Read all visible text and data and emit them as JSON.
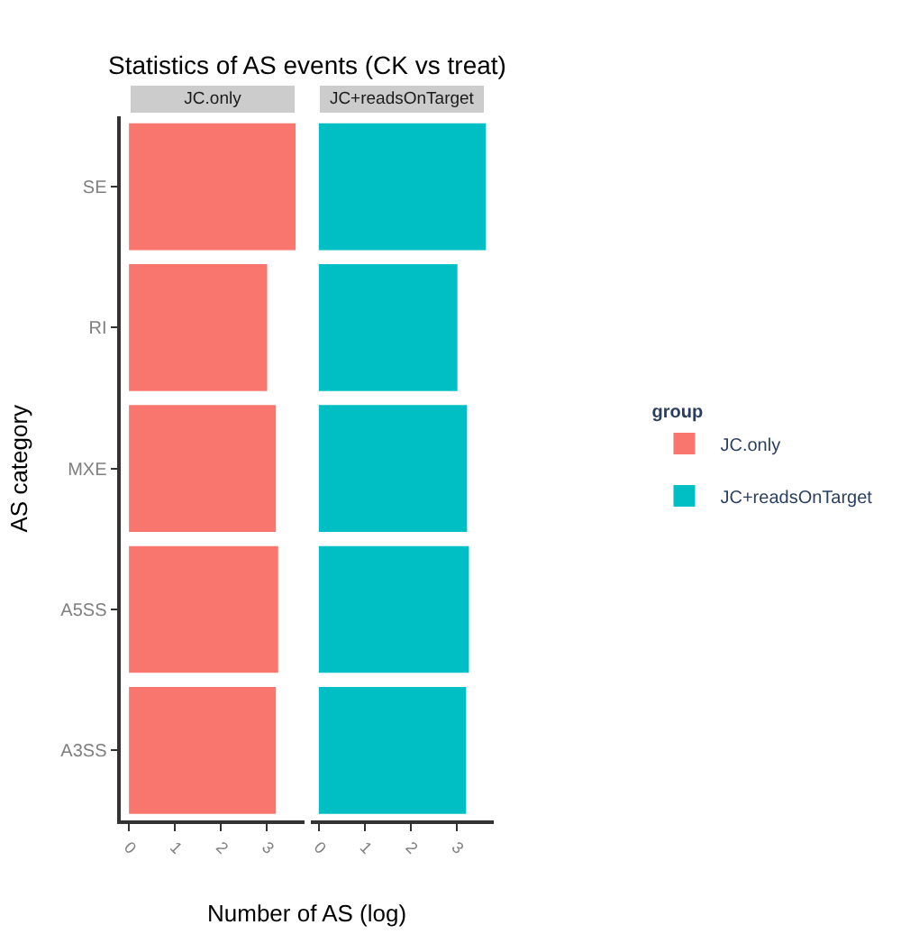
{
  "chart_data": [
    {
      "type": "bar",
      "orientation": "horizontal",
      "title": "Statistics of AS events (CK vs treat)",
      "subtitle": "JC.only",
      "xlabel": "Number of AS (log)",
      "ylabel": "AS category",
      "legend_title": "group",
      "legend": "right",
      "categories": [
        "SE",
        "RI",
        "MXE",
        "A5SS",
        "A3SS"
      ],
      "series": [
        {
          "name": "JC.only",
          "color": "#f8766d",
          "values": [
            3.63,
            3.01,
            3.2,
            3.25,
            3.2
          ]
        }
      ],
      "xlim": [
        -0.18,
        3.82
      ],
      "xticks": [
        0,
        1,
        2,
        3
      ]
    },
    {
      "type": "bar",
      "orientation": "horizontal",
      "subtitle": "JC+readsOnTarget",
      "tick_labels": "x",
      "categories": [
        "SE",
        "RI",
        "MXE",
        "A5SS",
        "A3SS"
      ],
      "series": [
        {
          "name": "JC+readsOnTarget",
          "color": "#00bfc4",
          "values": [
            3.64,
            3.02,
            3.23,
            3.27,
            3.21
          ]
        }
      ],
      "xlim": [
        -0.18,
        3.82
      ],
      "xticks": [
        0,
        1,
        2,
        3
      ]
    }
  ]
}
